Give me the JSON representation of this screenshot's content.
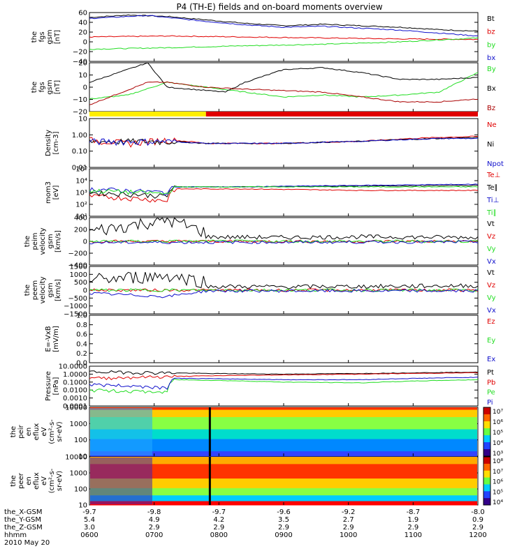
{
  "title": "P4 (TH-E) fields and on-board moments overview",
  "colors": {
    "black": "#000000",
    "red": "#e00000",
    "green": "#22dd22",
    "blue": "#1010cc",
    "darkred": "#aa0000",
    "yellow": "#ffee00"
  },
  "chart_data": [
    {
      "type": "line",
      "ylabel": [
        "the",
        "fgs",
        "gsm",
        "[nT]"
      ],
      "ylim": [
        -40,
        60
      ],
      "yticks": [
        "60",
        "40",
        "20",
        "0",
        "−20",
        "−40"
      ],
      "series": [
        {
          "name": "Bt",
          "color": "black",
          "points": [
            [
              0,
              50
            ],
            [
              0.1,
              55
            ],
            [
              0.2,
              52
            ],
            [
              0.3,
              45
            ],
            [
              0.4,
              38
            ],
            [
              0.5,
              33
            ],
            [
              0.6,
              36
            ],
            [
              0.7,
              33
            ],
            [
              0.8,
              30
            ],
            [
              0.9,
              25
            ],
            [
              1,
              22
            ]
          ]
        },
        {
          "name": "bz",
          "color": "red",
          "points": [
            [
              0,
              10
            ],
            [
              0.2,
              12
            ],
            [
              0.4,
              10
            ],
            [
              0.6,
              8
            ],
            [
              0.8,
              6
            ],
            [
              1,
              5
            ]
          ]
        },
        {
          "name": "by",
          "color": "green",
          "points": [
            [
              0,
              -15
            ],
            [
              0.2,
              -12
            ],
            [
              0.4,
              -8
            ],
            [
              0.6,
              -5
            ],
            [
              0.8,
              0
            ],
            [
              1,
              8
            ]
          ]
        },
        {
          "name": "bx",
          "color": "blue",
          "points": [
            [
              0,
              48
            ],
            [
              0.15,
              54
            ],
            [
              0.2,
              50
            ],
            [
              0.3,
              42
            ],
            [
              0.4,
              35
            ],
            [
              0.5,
              30
            ],
            [
              0.6,
              32
            ],
            [
              0.7,
              28
            ],
            [
              0.8,
              24
            ],
            [
              0.9,
              18
            ],
            [
              1,
              12
            ]
          ]
        }
      ]
    },
    {
      "type": "line",
      "ylabel": [
        "the",
        "fgs",
        "gsm",
        "[nT]"
      ],
      "ylim": [
        -25,
        25
      ],
      "yticks": [
        "20",
        "10",
        "0",
        "−10",
        "−20"
      ],
      "series": [
        {
          "name": "By",
          "color": "green",
          "points": [
            [
              0,
              -12
            ],
            [
              0.1,
              -8
            ],
            [
              0.2,
              5
            ],
            [
              0.3,
              0
            ],
            [
              0.4,
              -5
            ],
            [
              0.5,
              -10
            ],
            [
              0.6,
              -8
            ],
            [
              0.7,
              -10
            ],
            [
              0.8,
              -8
            ],
            [
              0.9,
              -5
            ],
            [
              1,
              15
            ]
          ]
        },
        {
          "name": "Bx",
          "color": "black",
          "points": [
            [
              0,
              5
            ],
            [
              0.15,
              25
            ],
            [
              0.2,
              0
            ],
            [
              0.35,
              -5
            ],
            [
              0.4,
              5
            ],
            [
              0.5,
              18
            ],
            [
              0.6,
              20
            ],
            [
              0.7,
              15
            ],
            [
              0.8,
              8
            ],
            [
              0.9,
              8
            ],
            [
              1,
              10
            ]
          ]
        },
        {
          "name": "Bz",
          "color": "darkred",
          "points": [
            [
              0,
              -18
            ],
            [
              0.15,
              5
            ],
            [
              0.2,
              5
            ],
            [
              0.3,
              0
            ],
            [
              0.4,
              -2
            ],
            [
              0.6,
              -5
            ],
            [
              0.8,
              -15
            ],
            [
              0.9,
              -15
            ],
            [
              1,
              -12
            ]
          ]
        }
      ]
    },
    {
      "type": "line",
      "ylabel": [
        "Density",
        "[cm-3]"
      ],
      "ylim": [
        0.01,
        10
      ],
      "log": true,
      "yticks": [
        "10",
        "1.00",
        "0.10",
        "0.01"
      ],
      "series": [
        {
          "name": "Ne",
          "color": "red",
          "points": [
            [
              0,
              0.5
            ],
            [
              0.1,
              0.3
            ],
            [
              0.2,
              0.5
            ],
            [
              0.3,
              0.3
            ],
            [
              0.5,
              0.3
            ],
            [
              0.7,
              0.4
            ],
            [
              0.9,
              0.7
            ],
            [
              1,
              0.8
            ]
          ]
        },
        {
          "name": "Ni",
          "color": "black",
          "points": [
            [
              0,
              0.4
            ],
            [
              0.2,
              0.4
            ],
            [
              0.3,
              0.3
            ],
            [
              0.5,
              0.3
            ],
            [
              0.7,
              0.4
            ],
            [
              0.9,
              0.6
            ],
            [
              1,
              0.7
            ]
          ]
        },
        {
          "name": "Npot",
          "color": "blue",
          "points": [
            [
              0,
              0.4
            ],
            [
              0.2,
              0.4
            ],
            [
              0.3,
              0.3
            ],
            [
              0.5,
              0.3
            ],
            [
              0.7,
              0.4
            ],
            [
              0.9,
              0.6
            ],
            [
              1,
              0.6
            ]
          ]
        }
      ]
    },
    {
      "type": "line",
      "ylabel": [
        "mom3",
        "[eV]"
      ],
      "ylim": [
        10,
        100000
      ],
      "log": true,
      "yticks": [
        "10⁵",
        "10⁴",
        "10³",
        "10²",
        "10¹"
      ],
      "series": [
        {
          "name": "Te⊥",
          "color": "red",
          "points": [
            [
              0,
              500
            ],
            [
              0.2,
              200
            ],
            [
              0.22,
              2000
            ],
            [
              0.4,
              2000
            ],
            [
              0.7,
              1500
            ],
            [
              1,
              1500
            ]
          ]
        },
        {
          "name": "Te∥",
          "color": "black",
          "points": [
            [
              0,
              1000
            ],
            [
              0.2,
              500
            ],
            [
              0.22,
              3000
            ],
            [
              0.4,
              3000
            ],
            [
              0.7,
              3500
            ],
            [
              1,
              4000
            ]
          ]
        },
        {
          "name": "Ti⊥",
          "color": "blue",
          "points": [
            [
              0,
              2000
            ],
            [
              0.2,
              1000
            ],
            [
              0.22,
              3000
            ],
            [
              0.4,
              3000
            ],
            [
              0.7,
              4000
            ],
            [
              1,
              5000
            ]
          ]
        },
        {
          "name": "Ti∥",
          "color": "green",
          "points": [
            [
              0,
              1500
            ],
            [
              0.2,
              800
            ],
            [
              0.22,
              3000
            ],
            [
              0.4,
              3000
            ],
            [
              0.7,
              3000
            ],
            [
              1,
              3000
            ]
          ]
        }
      ]
    },
    {
      "type": "line",
      "ylabel": [
        "the",
        "peim",
        "velocity",
        "gsm",
        "[km/s]"
      ],
      "ylim": [
        -400,
        400
      ],
      "yticks": [
        "400",
        "200",
        "0",
        "−200",
        "−400"
      ],
      "series": [
        {
          "name": "Vt",
          "color": "black",
          "points": [
            [
              0,
              50
            ],
            [
              0.1,
              150
            ],
            [
              0.2,
              250
            ],
            [
              0.3,
              40
            ],
            [
              0.5,
              30
            ],
            [
              0.7,
              40
            ],
            [
              1,
              30
            ]
          ]
        },
        {
          "name": "Vz",
          "color": "red",
          "points": [
            [
              0,
              0
            ],
            [
              1,
              0
            ]
          ]
        },
        {
          "name": "Vy",
          "color": "green",
          "points": [
            [
              0,
              0
            ],
            [
              1,
              0
            ]
          ]
        },
        {
          "name": "Vx",
          "color": "blue",
          "points": [
            [
              0,
              -20
            ],
            [
              1,
              -10
            ]
          ]
        }
      ]
    },
    {
      "type": "line",
      "ylabel": [
        "the",
        "peem",
        "velocity",
        "gsm",
        "[km/s]"
      ],
      "ylim": [
        -1500,
        1500
      ],
      "yticks": [
        "1500",
        "1000",
        "500",
        "0",
        "−500",
        "−1000",
        "−1500"
      ],
      "series": [
        {
          "name": "Vt",
          "color": "black",
          "points": [
            [
              0,
              200
            ],
            [
              0.2,
              500
            ],
            [
              0.3,
              100
            ],
            [
              0.5,
              80
            ],
            [
              0.7,
              100
            ],
            [
              1,
              150
            ]
          ]
        },
        {
          "name": "Vz",
          "color": "red",
          "points": [
            [
              0,
              0
            ],
            [
              1,
              0
            ]
          ]
        },
        {
          "name": "Vy",
          "color": "green",
          "points": [
            [
              0,
              0
            ],
            [
              1,
              0
            ]
          ]
        },
        {
          "name": "Vx",
          "color": "blue",
          "points": [
            [
              0,
              -200
            ],
            [
              0.2,
              -400
            ],
            [
              0.3,
              -50
            ],
            [
              1,
              -50
            ]
          ]
        }
      ]
    },
    {
      "type": "line",
      "ylabel": [
        "E=-VxB",
        "[mV/m]"
      ],
      "ylim": [
        0,
        1
      ],
      "yticks": [
        "1.0",
        "0.8",
        "0.6",
        "0.4",
        "0.2",
        "0.0"
      ],
      "series": [
        {
          "name": "Ez",
          "color": "red",
          "points": []
        },
        {
          "name": "Ey",
          "color": "green",
          "points": []
        },
        {
          "name": "Ex",
          "color": "blue",
          "points": []
        }
      ]
    },
    {
      "type": "line",
      "ylabel": [
        "Pressure",
        "[nPa]"
      ],
      "ylim": [
        0.0001,
        10
      ],
      "log": true,
      "yticks": [
        "10.0000",
        "1.0000",
        "0.1000",
        "0.0100",
        "0.0010",
        "0.0001"
      ],
      "series": [
        {
          "name": "Pt",
          "color": "black",
          "points": [
            [
              0,
              2
            ],
            [
              0.2,
              1.5
            ],
            [
              0.3,
              1.2
            ],
            [
              0.5,
              1.0
            ],
            [
              0.7,
              1.2
            ],
            [
              1,
              1.8
            ]
          ]
        },
        {
          "name": "Pb",
          "color": "red",
          "points": [
            [
              0,
              0.3
            ],
            [
              0.2,
              0.5
            ],
            [
              0.3,
              0.6
            ],
            [
              0.5,
              0.8
            ],
            [
              0.7,
              1.0
            ],
            [
              1,
              1.5
            ]
          ]
        },
        {
          "name": "Pe",
          "color": "green",
          "points": [
            [
              0,
              0.01
            ],
            [
              0.2,
              0.005
            ],
            [
              0.22,
              0.2
            ],
            [
              0.5,
              0.1
            ],
            [
              0.7,
              0.08
            ],
            [
              1,
              0.2
            ]
          ]
        },
        {
          "name": "Pi",
          "color": "blue",
          "points": [
            [
              0,
              0.05
            ],
            [
              0.2,
              0.02
            ],
            [
              0.22,
              0.3
            ],
            [
              0.5,
              0.2
            ],
            [
              0.7,
              0.2
            ],
            [
              1,
              0.4
            ]
          ]
        }
      ]
    },
    {
      "type": "heatmap",
      "ylabel": [
        "the",
        "peir",
        "en",
        "eflux",
        "eV",
        "(cm²-s-",
        "sr-eV)"
      ],
      "yticks": [
        "10000",
        "1000",
        "100",
        "10"
      ],
      "colorbar": {
        "labels": [
          "10⁷",
          "10⁶",
          "10⁵",
          "10⁴",
          "10³"
        ]
      }
    },
    {
      "type": "heatmap",
      "ylabel": [
        "the",
        "peer",
        "en",
        "eflux",
        "eV",
        "(cm²-s-",
        "sr-eV)"
      ],
      "yticks": [
        "10000",
        "1000",
        "100",
        "10"
      ],
      "colorbar": {
        "labels": [
          "10⁸",
          "10⁷",
          "10⁶",
          "10⁵",
          "10⁴"
        ]
      }
    }
  ],
  "x_axis": {
    "rows": [
      {
        "label": "the_X-GSM",
        "values": [
          "-9.7",
          "-9.8",
          "-9.7",
          "-9.6",
          "-9.2",
          "-8.7",
          "-8.0"
        ]
      },
      {
        "label": "the_Y-GSM",
        "values": [
          "5.4",
          "4.9",
          "4.2",
          "3.5",
          "2.7",
          "1.9",
          "0.9"
        ]
      },
      {
        "label": "the_Z-GSM",
        "values": [
          "3.0",
          "2.9",
          "2.9",
          "2.9",
          "2.9",
          "2.9",
          "2.9"
        ]
      },
      {
        "label": "hhmm",
        "values": [
          "0600",
          "0700",
          "0800",
          "0900",
          "1000",
          "1100",
          "1200"
        ]
      }
    ],
    "date": "2010 May 20"
  },
  "mode_bar": {
    "segments": [
      {
        "from": 0,
        "to": 0.3,
        "color": "yellow"
      },
      {
        "from": 0.3,
        "to": 1,
        "color": "red"
      }
    ]
  }
}
